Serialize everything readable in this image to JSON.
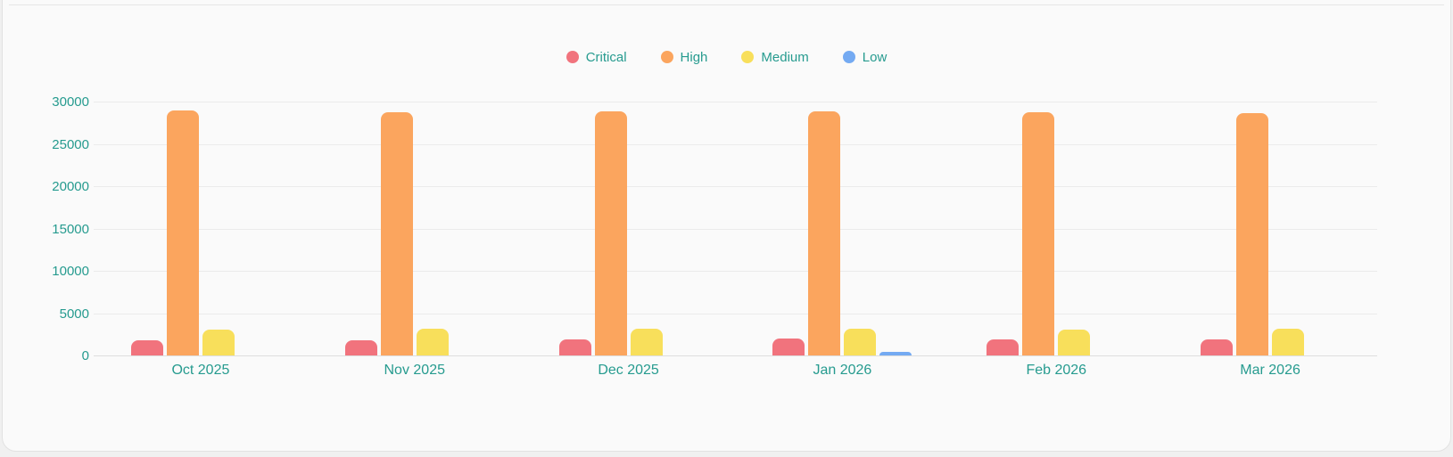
{
  "page": {
    "background": "#F0F0F0"
  },
  "card": {
    "background": "#FAFAFA",
    "border_color": "#E2E2E2",
    "divider_color": "#E6E6E6"
  },
  "chart_data": {
    "type": "bar",
    "title": "",
    "categories": [
      "Oct 2025",
      "Nov 2025",
      "Dec 2025",
      "Jan 2026",
      "Feb 2026",
      "Mar 2026"
    ],
    "series": [
      {
        "name": "Critical",
        "color": "#F1737D",
        "values": [
          1800,
          1800,
          1850,
          2000,
          1900,
          1900
        ]
      },
      {
        "name": "High",
        "color": "#FBA55E",
        "values": [
          28900,
          28750,
          28800,
          28850,
          28700,
          28650
        ]
      },
      {
        "name": "Medium",
        "color": "#F8DF5B",
        "values": [
          3100,
          3150,
          3150,
          3200,
          3100,
          3150
        ]
      },
      {
        "name": "Low",
        "color": "#74AAF2",
        "values": [
          0,
          0,
          0,
          450,
          0,
          0
        ]
      }
    ],
    "ylim": [
      0,
      30000
    ],
    "y_ticks": [
      0,
      5000,
      10000,
      15000,
      20000,
      25000,
      30000
    ],
    "xlabel": "",
    "ylabel": "",
    "grid": true,
    "legend_position": "top",
    "axis_text_color": "#269B8F",
    "gridline_color": "#EBEBEB",
    "axis_line_color": "#DEDEDE"
  }
}
